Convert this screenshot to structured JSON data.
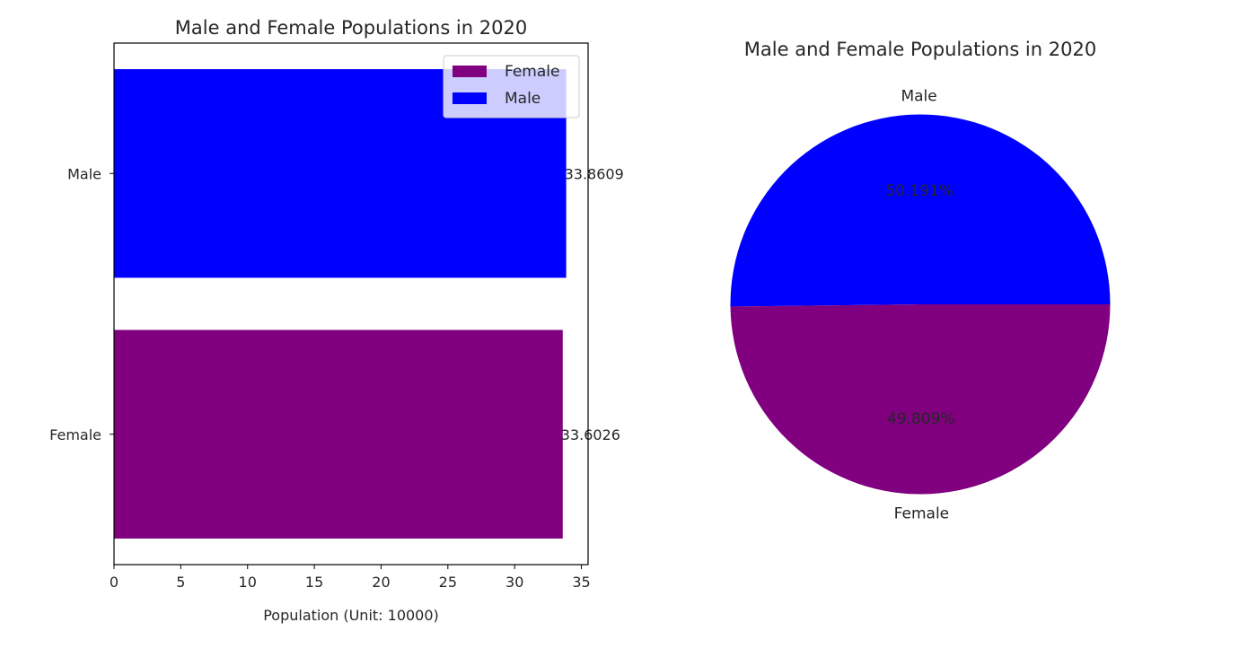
{
  "chart_data": [
    {
      "type": "bar",
      "orientation": "horizontal",
      "title": "Male and Female Populations in 2020",
      "xlabel": "Population (Unit: 10000)",
      "ylabel": "",
      "xlim": [
        0,
        35.5
      ],
      "xticks": [
        0,
        5,
        10,
        15,
        20,
        25,
        30,
        35
      ],
      "categories": [
        "Female",
        "Male"
      ],
      "values": [
        33.6026,
        33.8609
      ],
      "value_labels": [
        "33.6026",
        "33.8609"
      ],
      "colors": [
        "#800080",
        "#0000ff"
      ],
      "legend": {
        "placement": "top-right",
        "entries": [
          {
            "label": "Female",
            "color": "#800080"
          },
          {
            "label": "Male",
            "color": "#0000ff"
          }
        ]
      },
      "grid": false
    },
    {
      "type": "pie",
      "title": "Male and Female Populations in 2020",
      "labels": [
        "Male",
        "Female"
      ],
      "values": [
        50.191,
        49.809
      ],
      "pct_labels": [
        "50.191%",
        "49.809%"
      ],
      "colors": [
        "#0000ff",
        "#800080"
      ]
    }
  ]
}
